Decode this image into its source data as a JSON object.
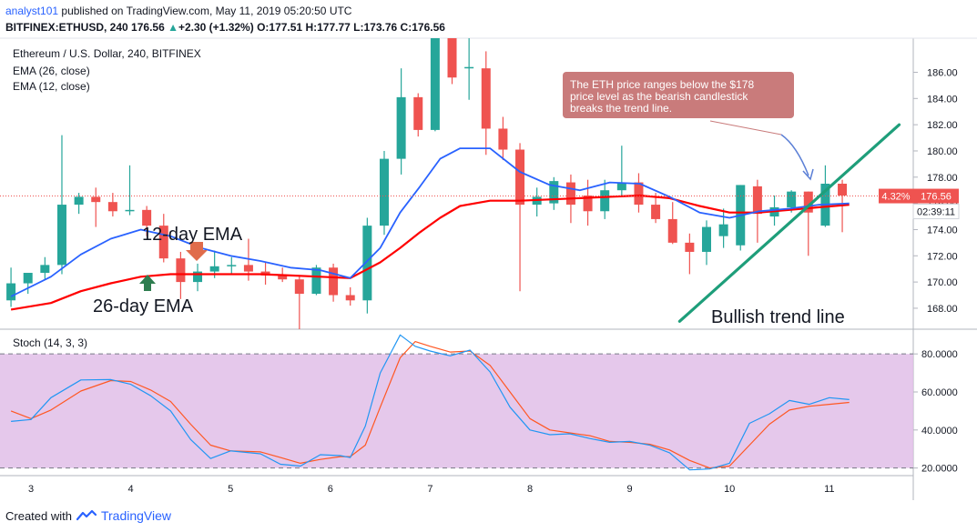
{
  "header": {
    "author": "analyst101",
    "published_text": "published on TradingView.com, May 11, 2019 05:20:50 UTC",
    "symbol_line_prefix": "BITFINEX:ETHUSD, 240",
    "last": "176.56",
    "change_arrow": "▲",
    "change": "+2.30 (+1.32%)",
    "o_label": "O:",
    "o_value": "177.51",
    "h_label": "H:",
    "h_value": "177.77",
    "l_label": "L:",
    "l_value": "173.76",
    "c_label": "C:",
    "c_value": "176.56"
  },
  "legend": {
    "title": "Ethereum / U.S. Dollar, 240, BITFINEX",
    "ema26": "EMA (26, close)",
    "ema12": "EMA (12, close)",
    "stoch": "Stoch (14, 3, 3)"
  },
  "annotations": {
    "callout_lines": [
      "The ETH price ranges below the $178",
      "price level as the bearish candlestick",
      "breaks the trend line."
    ],
    "ema12_label": "12-day EMA",
    "ema26_label": "26-day EMA",
    "trend_label": "Bullish trend line"
  },
  "price_tags": {
    "percent": "4.32%",
    "price": "176.56",
    "countdown": "02:39:11"
  },
  "footer": {
    "created_with": "Created with",
    "brand": "TradingView"
  },
  "colors": {
    "up": "#26a69a",
    "down": "#ef5350",
    "ema12": "#2962ff",
    "ema26": "#ff0000",
    "stoch_k": "#2196f3",
    "stoch_d": "#ff5722",
    "stoch_band": "#e1bee7",
    "trend": "#1e9e7a",
    "callout": "#c97b7b"
  },
  "chart_data": {
    "type": "candlestick",
    "title": "Ethereum / U.S. Dollar, 240, BITFINEX",
    "x_ticks": [
      "3",
      "4",
      "5",
      "6",
      "7",
      "8",
      "9",
      "10",
      "11"
    ],
    "x_tick_positions": [
      3,
      4,
      5,
      6,
      7,
      8,
      9,
      10,
      11
    ],
    "price_axis": {
      "ylim": [
        166.4,
        188.6
      ],
      "ticks": [
        "168.00",
        "170.00",
        "172.00",
        "174.00",
        "176.00",
        "178.00",
        "180.00",
        "182.00",
        "184.00",
        "186.00"
      ],
      "tick_values": [
        168,
        170,
        172,
        174,
        176,
        178,
        180,
        182,
        184,
        186
      ]
    },
    "candles": [
      {
        "x": 2.8,
        "o": 168.6,
        "h": 171.1,
        "l": 168.1,
        "c": 169.9
      },
      {
        "x": 2.97,
        "o": 169.9,
        "h": 170.6,
        "l": 169.1,
        "c": 170.7
      },
      {
        "x": 3.14,
        "o": 170.7,
        "h": 171.9,
        "l": 170.2,
        "c": 171.3
      },
      {
        "x": 3.31,
        "o": 171.3,
        "h": 181.2,
        "l": 170.6,
        "c": 175.9
      },
      {
        "x": 3.48,
        "o": 175.9,
        "h": 176.8,
        "l": 175.2,
        "c": 176.5
      },
      {
        "x": 3.65,
        "o": 176.5,
        "h": 177.2,
        "l": 174.2,
        "c": 176.1
      },
      {
        "x": 3.82,
        "o": 176.1,
        "h": 176.8,
        "l": 175.0,
        "c": 175.4
      },
      {
        "x": 3.99,
        "o": 175.4,
        "h": 178.9,
        "l": 175.1,
        "c": 175.5
      },
      {
        "x": 4.16,
        "o": 175.5,
        "h": 175.8,
        "l": 173.5,
        "c": 174.3
      },
      {
        "x": 4.33,
        "o": 174.3,
        "h": 175.2,
        "l": 171.5,
        "c": 171.8
      },
      {
        "x": 4.5,
        "o": 171.8,
        "h": 172.3,
        "l": 168.7,
        "c": 170.0
      },
      {
        "x": 4.67,
        "o": 170.0,
        "h": 171.4,
        "l": 169.3,
        "c": 170.8
      },
      {
        "x": 4.84,
        "o": 170.8,
        "h": 172.4,
        "l": 170.3,
        "c": 171.2
      },
      {
        "x": 5.01,
        "o": 171.2,
        "h": 171.9,
        "l": 170.6,
        "c": 171.3
      },
      {
        "x": 5.18,
        "o": 171.3,
        "h": 173.3,
        "l": 170.1,
        "c": 170.8
      },
      {
        "x": 5.35,
        "o": 170.8,
        "h": 171.5,
        "l": 169.8,
        "c": 170.5
      },
      {
        "x": 5.52,
        "o": 170.5,
        "h": 171.1,
        "l": 170.0,
        "c": 170.2
      },
      {
        "x": 5.69,
        "o": 170.2,
        "h": 170.5,
        "l": 166.4,
        "c": 169.1
      },
      {
        "x": 5.86,
        "o": 169.1,
        "h": 171.3,
        "l": 169.0,
        "c": 171.1
      },
      {
        "x": 6.03,
        "o": 171.1,
        "h": 171.4,
        "l": 168.5,
        "c": 169.0
      },
      {
        "x": 6.2,
        "o": 169.0,
        "h": 169.6,
        "l": 168.2,
        "c": 168.6
      },
      {
        "x": 6.37,
        "o": 168.6,
        "h": 174.9,
        "l": 167.6,
        "c": 174.3
      },
      {
        "x": 6.54,
        "o": 174.3,
        "h": 180.0,
        "l": 173.6,
        "c": 179.4
      },
      {
        "x": 6.71,
        "o": 179.4,
        "h": 186.3,
        "l": 178.2,
        "c": 184.1
      },
      {
        "x": 6.88,
        "o": 184.1,
        "h": 184.4,
        "l": 181.1,
        "c": 181.6
      },
      {
        "x": 7.05,
        "o": 181.6,
        "h": 188.6,
        "l": 181.5,
        "c": 188.6
      },
      {
        "x": 7.22,
        "o": 188.6,
        "h": 188.6,
        "l": 185.1,
        "c": 185.6
      },
      {
        "x": 7.39,
        "o": 186.4,
        "h": 188.6,
        "l": 183.9,
        "c": 186.4
      },
      {
        "x": 7.56,
        "o": 186.3,
        "h": 187.6,
        "l": 179.7,
        "c": 181.7
      },
      {
        "x": 7.73,
        "o": 181.7,
        "h": 182.6,
        "l": 179.3,
        "c": 180.1
      },
      {
        "x": 7.9,
        "o": 180.1,
        "h": 180.6,
        "l": 169.3,
        "c": 175.9
      },
      {
        "x": 8.07,
        "o": 175.9,
        "h": 177.2,
        "l": 175.0,
        "c": 176.5
      },
      {
        "x": 8.24,
        "o": 176.0,
        "h": 178.0,
        "l": 175.5,
        "c": 177.7
      },
      {
        "x": 8.41,
        "o": 177.6,
        "h": 178.2,
        "l": 174.5,
        "c": 175.9
      },
      {
        "x": 8.58,
        "o": 176.6,
        "h": 177.8,
        "l": 174.3,
        "c": 175.4
      },
      {
        "x": 8.75,
        "o": 175.4,
        "h": 177.8,
        "l": 174.8,
        "c": 177.0
      },
      {
        "x": 8.92,
        "o": 177.0,
        "h": 180.4,
        "l": 176.5,
        "c": 177.6
      },
      {
        "x": 9.09,
        "o": 177.6,
        "h": 178.3,
        "l": 175.3,
        "c": 175.9
      },
      {
        "x": 9.26,
        "o": 175.9,
        "h": 176.8,
        "l": 174.5,
        "c": 174.8
      },
      {
        "x": 9.43,
        "o": 174.8,
        "h": 176.1,
        "l": 172.9,
        "c": 173.0
      },
      {
        "x": 9.6,
        "o": 173.0,
        "h": 173.7,
        "l": 170.6,
        "c": 172.3
      },
      {
        "x": 9.77,
        "o": 172.3,
        "h": 174.7,
        "l": 171.3,
        "c": 174.2
      },
      {
        "x": 9.94,
        "o": 173.5,
        "h": 175.6,
        "l": 172.6,
        "c": 174.4
      },
      {
        "x": 10.11,
        "o": 172.8,
        "h": 177.4,
        "l": 172.4,
        "c": 177.4
      },
      {
        "x": 10.28,
        "o": 177.3,
        "h": 177.8,
        "l": 173.0,
        "c": 175.2
      },
      {
        "x": 10.45,
        "o": 175.0,
        "h": 176.6,
        "l": 174.3,
        "c": 175.7
      },
      {
        "x": 10.62,
        "o": 175.7,
        "h": 177.0,
        "l": 175.3,
        "c": 176.9
      },
      {
        "x": 10.79,
        "o": 176.9,
        "h": 176.9,
        "l": 172.0,
        "c": 175.3
      },
      {
        "x": 10.96,
        "o": 174.3,
        "h": 178.9,
        "l": 174.2,
        "c": 177.5
      },
      {
        "x": 11.13,
        "o": 177.5,
        "h": 177.8,
        "l": 173.8,
        "c": 176.6
      }
    ],
    "ema12": {
      "name": "EMA (12, close)",
      "x": [
        2.8,
        3.2,
        3.5,
        3.8,
        4.1,
        4.4,
        4.7,
        5.0,
        5.3,
        5.6,
        5.9,
        6.2,
        6.5,
        6.7,
        6.9,
        7.1,
        7.3,
        7.6,
        7.9,
        8.2,
        8.5,
        8.8,
        9.1,
        9.4,
        9.7,
        10.0,
        10.3,
        10.6,
        10.9,
        11.2
      ],
      "values": [
        168.9,
        170.4,
        172.1,
        173.3,
        174.0,
        173.5,
        172.6,
        172.0,
        171.6,
        171.1,
        170.9,
        170.3,
        172.6,
        175.3,
        177.3,
        179.4,
        180.2,
        180.2,
        178.4,
        177.4,
        177.0,
        177.6,
        177.5,
        176.5,
        175.3,
        174.9,
        175.4,
        175.6,
        175.9,
        176.0
      ]
    },
    "ema26": {
      "name": "EMA (26, close)",
      "x": [
        2.8,
        3.2,
        3.5,
        3.8,
        4.1,
        4.4,
        4.7,
        5.0,
        5.3,
        5.6,
        5.9,
        6.2,
        6.5,
        6.7,
        6.9,
        7.1,
        7.3,
        7.6,
        7.9,
        8.2,
        8.5,
        8.8,
        9.1,
        9.4,
        9.7,
        10.0,
        10.3,
        10.6,
        10.9,
        11.2
      ],
      "values": [
        167.9,
        168.4,
        169.3,
        169.9,
        170.4,
        170.6,
        170.6,
        170.6,
        170.6,
        170.5,
        170.4,
        170.3,
        171.5,
        172.6,
        173.8,
        174.9,
        175.8,
        176.2,
        176.2,
        176.3,
        176.4,
        176.5,
        176.6,
        176.4,
        175.8,
        175.3,
        175.3,
        175.5,
        175.7,
        175.9
      ]
    },
    "trendline": {
      "x": [
        9.5,
        11.7
      ],
      "values": [
        167.0,
        182.0
      ]
    },
    "stoch": {
      "ylim": [
        16,
        93
      ],
      "ticks": [
        "20.0000",
        "40.0000",
        "60.0000",
        "80.0000"
      ],
      "tick_values": [
        20,
        40,
        60,
        80
      ],
      "bands": [
        20,
        80
      ],
      "x": [
        2.8,
        3.0,
        3.2,
        3.5,
        3.8,
        4.0,
        4.2,
        4.4,
        4.6,
        4.8,
        5.0,
        5.3,
        5.5,
        5.7,
        5.9,
        6.1,
        6.2,
        6.35,
        6.5,
        6.7,
        6.85,
        7.0,
        7.2,
        7.4,
        7.6,
        7.8,
        8.0,
        8.2,
        8.4,
        8.6,
        8.8,
        9.0,
        9.2,
        9.4,
        9.6,
        9.8,
        10.0,
        10.2,
        10.4,
        10.6,
        10.8,
        11.0,
        11.2
      ],
      "k": [
        44.5,
        45.5,
        57.0,
        66.3,
        66.5,
        64.0,
        58.0,
        50.0,
        35.0,
        25.0,
        29.0,
        27.5,
        22.0,
        21.0,
        27.0,
        26.5,
        25.5,
        42.0,
        70.0,
        90.0,
        84.0,
        81.5,
        79.0,
        82.0,
        70.5,
        52.0,
        40.0,
        37.5,
        38.0,
        35.5,
        33.5,
        34.0,
        32.0,
        28.0,
        19.0,
        19.5,
        22.5,
        43.5,
        48.5,
        55.5,
        53.5,
        57.0,
        56.0
      ],
      "d": [
        50.0,
        46.0,
        50.5,
        60.5,
        66.0,
        65.5,
        61.0,
        55.0,
        43.0,
        32.0,
        29.0,
        28.5,
        25.5,
        22.5,
        24.5,
        26.0,
        26.0,
        32.0,
        52.0,
        78.0,
        86.5,
        84.0,
        81.0,
        81.5,
        74.0,
        60.0,
        46.0,
        40.0,
        38.5,
        37.0,
        34.0,
        33.5,
        32.5,
        29.5,
        24.0,
        20.0,
        21.0,
        32.0,
        43.0,
        50.5,
        52.5,
        53.5,
        54.5
      ]
    }
  }
}
